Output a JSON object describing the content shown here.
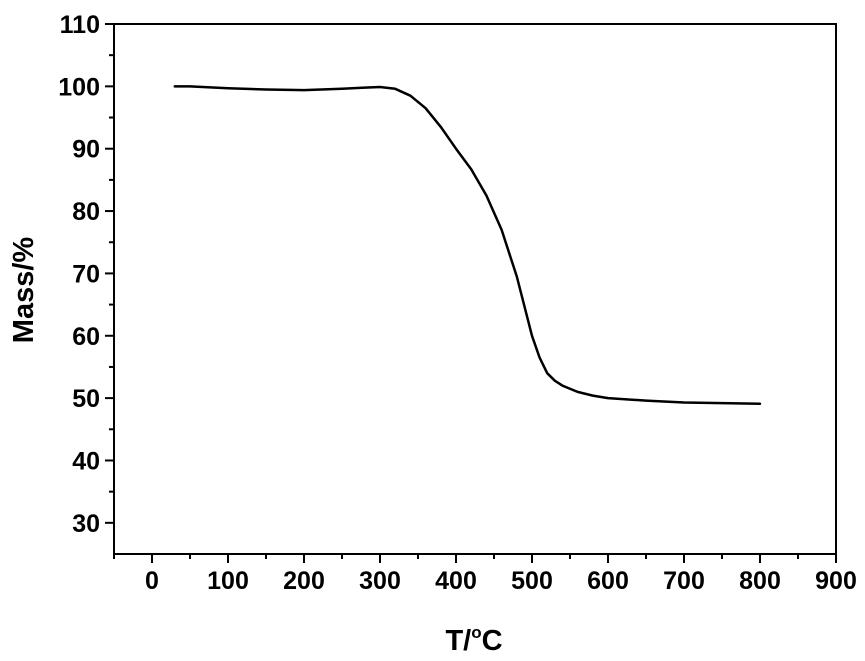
{
  "chart_data": {
    "type": "line",
    "title": "",
    "xlabel": {
      "prefix": "T/",
      "superscript": "o",
      "suffix": "C"
    },
    "ylabel": "Mass/%",
    "xlim": [
      -50,
      900
    ],
    "ylim": [
      25,
      110
    ],
    "x_ticks": [
      0,
      100,
      200,
      300,
      400,
      500,
      600,
      700,
      800,
      900
    ],
    "y_ticks": [
      30,
      40,
      50,
      60,
      70,
      80,
      90,
      100,
      110
    ],
    "grid": false,
    "legend": "none",
    "line_color": "#000000",
    "series": [
      {
        "x": [
          30,
          50,
          100,
          150,
          200,
          250,
          280,
          300,
          320,
          340,
          360,
          380,
          400,
          420,
          440,
          460,
          480,
          500,
          510,
          520,
          530,
          540,
          560,
          580,
          600,
          650,
          700,
          750,
          800
        ],
        "y": [
          100,
          100,
          99.7,
          99.5,
          99.4,
          99.6,
          99.8,
          99.9,
          99.6,
          98.5,
          96.5,
          93.5,
          90,
          86.7,
          82.5,
          77,
          69.5,
          60,
          56.5,
          54,
          52.8,
          52,
          51,
          50.4,
          50,
          49.6,
          49.3,
          49.2,
          49.1
        ]
      }
    ]
  }
}
